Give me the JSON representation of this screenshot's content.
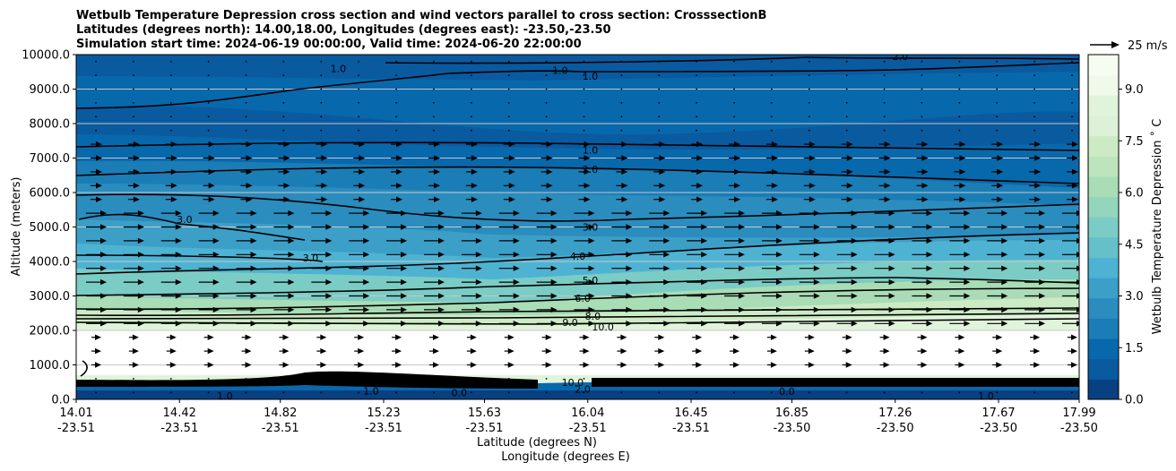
{
  "chart_data": {
    "type": "contour",
    "title_lines": [
      "Wetbulb Temperature Depression cross section and wind vectors parallel to cross section: CrosssectionB",
      "Latitudes (degrees north): 14.00,18.00, Longitudes (degrees east): -23.50,-23.50",
      "Simulation start time: 2024-06-19 00:00:00, Valid time: 2024-06-20 22:00:00"
    ],
    "ylabel": "Altitude (meters)",
    "xlabel_lat": "Latitude (degrees N)",
    "xlabel_lon": "Longitude (degrees E)",
    "ylim": [
      0,
      10000
    ],
    "yticks": [
      "0.0",
      "1000.0",
      "2000.0",
      "3000.0",
      "4000.0",
      "5000.0",
      "6000.0",
      "7000.0",
      "8000.0",
      "9000.0",
      "10000.0"
    ],
    "ytick_values": [
      0,
      1000,
      2000,
      3000,
      4000,
      5000,
      6000,
      7000,
      8000,
      9000,
      10000
    ],
    "xticks_lat": [
      "14.01",
      "14.42",
      "14.82",
      "15.23",
      "15.63",
      "16.04",
      "16.45",
      "16.85",
      "17.26",
      "17.67",
      "17.99"
    ],
    "xticks_lon": [
      "-23.51",
      "-23.51",
      "-23.51",
      "-23.51",
      "-23.51",
      "-23.51",
      "-23.51",
      "-23.50",
      "-23.50",
      "-23.50",
      "-23.50"
    ],
    "grid": "horizontal",
    "colorbar": {
      "label": "Wetbulb Temperature Depression $^\\circ$C",
      "label_text": "Wetbulb Temperature Depression ˚ C",
      "range": [
        0,
        10
      ],
      "ticks": [
        "0.0",
        "1.5",
        "3.0",
        "4.5",
        "6.0",
        "7.5",
        "9.0"
      ],
      "tick_values": [
        0,
        1.5,
        3.0,
        4.5,
        6.0,
        7.5,
        9.0
      ],
      "colors": [
        "#084081",
        "#0a5aa0",
        "#0868ac",
        "#1a7db6",
        "#2b8cbe",
        "#3c9fc8",
        "#4eb3d3",
        "#66c0ca",
        "#7bccc4",
        "#93d5bd",
        "#a8ddb5",
        "#bde5bd",
        "#ccebc5",
        "#dcf1d8",
        "#e0f3db",
        "#f0f9ea",
        "#f7fcf0"
      ]
    },
    "quiver_key": "25 m/s",
    "contour_labels": [
      {
        "text": "1.0",
        "x": 15.05,
        "y": 9600
      },
      {
        "text": "1.0",
        "x": 15.93,
        "y": 9550
      },
      {
        "text": "1.0",
        "x": 16.05,
        "y": 9380
      },
      {
        "text": "2.0",
        "x": 17.28,
        "y": 9950
      },
      {
        "text": "1.0",
        "x": 16.05,
        "y": 7240
      },
      {
        "text": "2.0",
        "x": 16.05,
        "y": 6670
      },
      {
        "text": "3.0",
        "x": 14.44,
        "y": 5220
      },
      {
        "text": "3.0",
        "x": 16.05,
        "y": 5000
      },
      {
        "text": "3.0",
        "x": 14.94,
        "y": 4100
      },
      {
        "text": "4.0",
        "x": 16.0,
        "y": 4150
      },
      {
        "text": "5.0",
        "x": 16.05,
        "y": 3450
      },
      {
        "text": "6.0",
        "x": 16.02,
        "y": 2930
      },
      {
        "text": "8.0",
        "x": 16.06,
        "y": 2420
      },
      {
        "text": "9.0",
        "x": 15.97,
        "y": 2230
      },
      {
        "text": "10.0",
        "x": 16.1,
        "y": 2100
      },
      {
        "text": "10.0",
        "x": 15.98,
        "y": 500
      },
      {
        "text": "2.0",
        "x": 16.02,
        "y": 300
      },
      {
        "text": "0.0",
        "x": 15.53,
        "y": 200
      },
      {
        "text": "0.0",
        "x": 16.83,
        "y": 230
      },
      {
        "text": "1.0",
        "x": 17.62,
        "y": 100
      },
      {
        "text": "1.0",
        "x": 14.6,
        "y": 100
      },
      {
        "text": "1.0",
        "x": 15.18,
        "y": 250
      }
    ]
  }
}
